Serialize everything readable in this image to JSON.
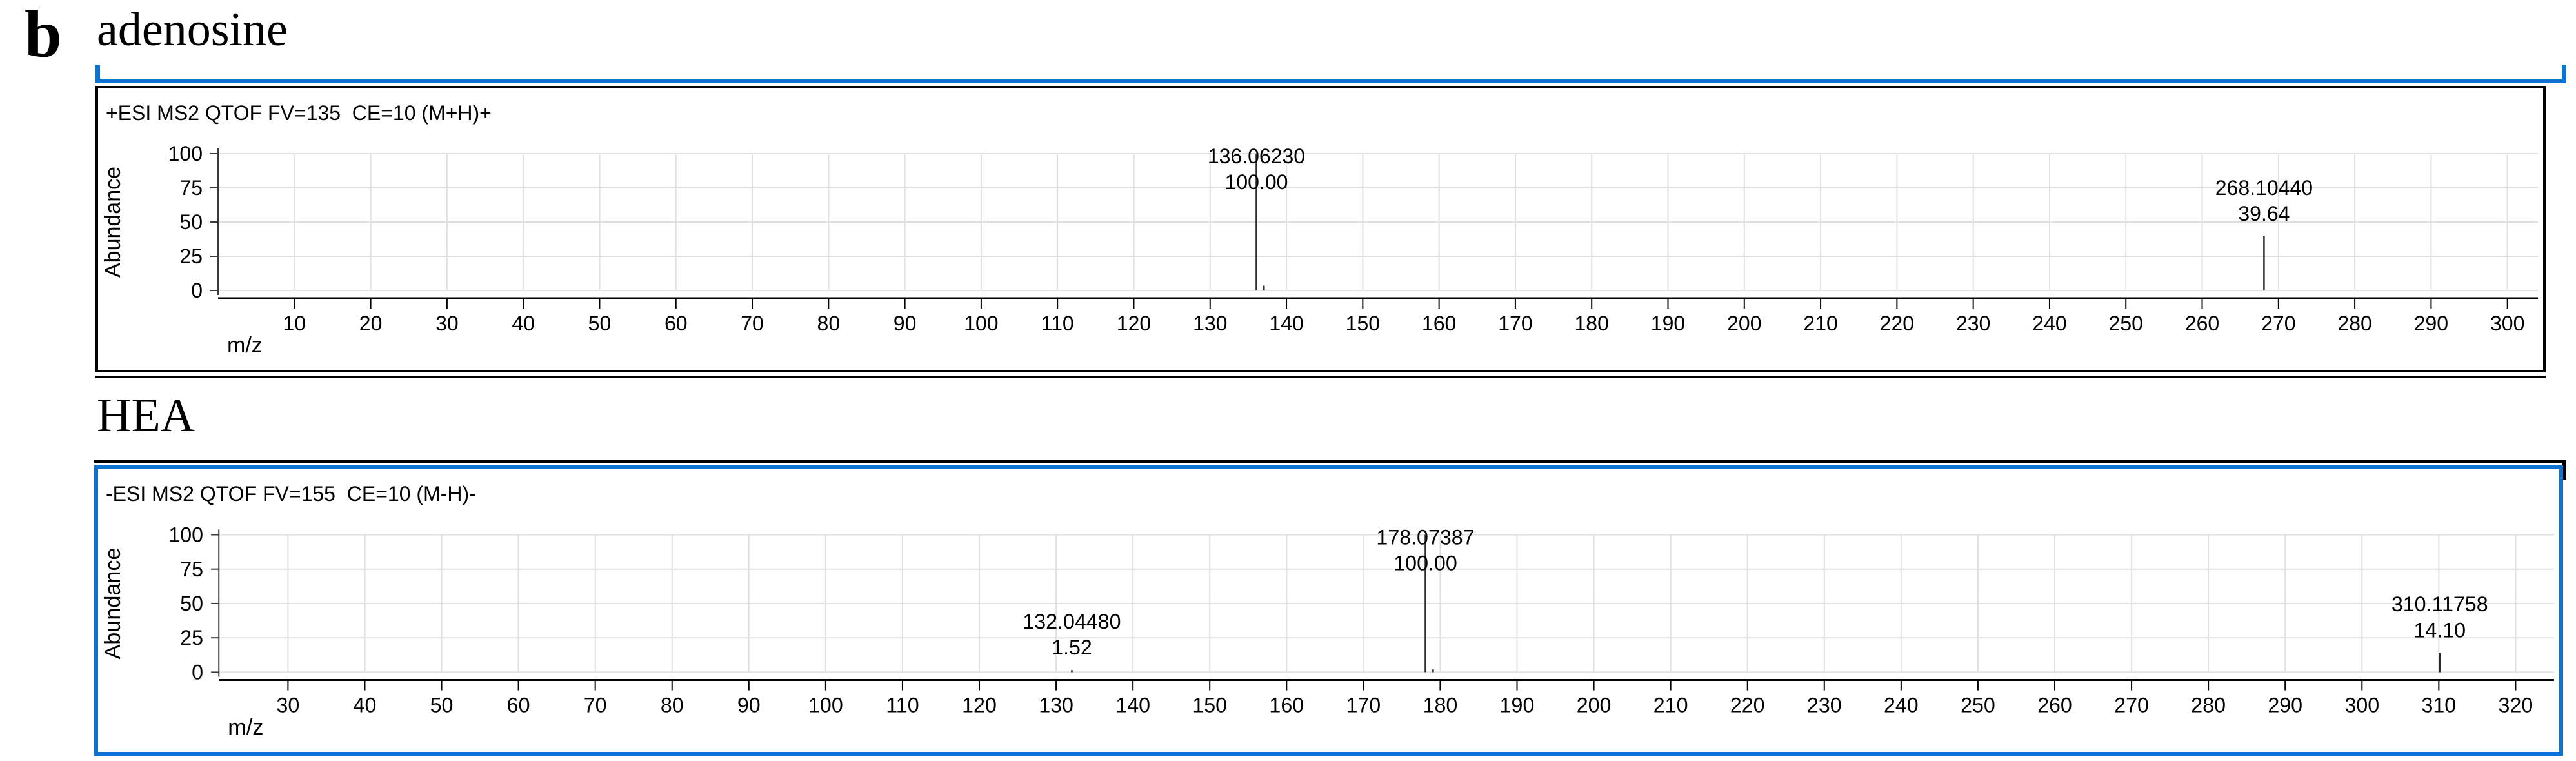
{
  "figure": {
    "panel_letter": "b",
    "colors": {
      "highlight_blue": "#0c73d0",
      "grid_gray": "#e0e0e0",
      "axis_black": "#000000",
      "peak_line": "#2b2b2b"
    }
  },
  "chart_data": [
    {
      "type": "line",
      "subtype": "mass-spectrum",
      "title": "adenosine",
      "header": "+ESI MS2 QTOF FV=135  CE=10 (M+H)+",
      "xlabel": "m/z",
      "ylabel": "Abundance",
      "xlim": [
        0,
        304
      ],
      "ylim": [
        0,
        100
      ],
      "grid": true,
      "legend": "none",
      "xticks": [
        10,
        20,
        30,
        40,
        50,
        60,
        70,
        80,
        90,
        100,
        110,
        120,
        130,
        140,
        150,
        160,
        170,
        180,
        190,
        200,
        210,
        220,
        230,
        240,
        250,
        260,
        270,
        280,
        290,
        300
      ],
      "yticks": [
        0,
        25,
        50,
        75,
        100
      ],
      "peaks": [
        {
          "mz": 136.0623,
          "abundance": 100.0,
          "mz_label": "136.06230",
          "abundance_label": "100.00"
        },
        {
          "mz": 268.1044,
          "abundance": 39.64,
          "mz_label": "268.10440",
          "abundance_label": "39.64"
        }
      ],
      "minor_peaks": [
        {
          "mz": 137.06,
          "abundance": 3.5
        }
      ]
    },
    {
      "type": "line",
      "subtype": "mass-spectrum",
      "title": "HEA",
      "header": "-ESI MS2 QTOF FV=155  CE=10 (M-H)-",
      "xlabel": "m/z",
      "ylabel": "Abundance",
      "xlim": [
        21,
        325
      ],
      "ylim": [
        0,
        100
      ],
      "grid": true,
      "legend": "none",
      "xticks": [
        30,
        40,
        50,
        60,
        70,
        80,
        90,
        100,
        110,
        120,
        130,
        140,
        150,
        160,
        170,
        180,
        190,
        200,
        210,
        220,
        230,
        240,
        250,
        260,
        270,
        280,
        290,
        300,
        310,
        320
      ],
      "yticks": [
        0,
        25,
        50,
        75,
        100
      ],
      "peaks": [
        {
          "mz": 132.0448,
          "abundance": 1.52,
          "mz_label": "132.04480",
          "abundance_label": "1.52"
        },
        {
          "mz": 178.0739,
          "abundance": 100.0,
          "mz_label": "178.07387",
          "abundance_label": "100.00"
        },
        {
          "mz": 310.1176,
          "abundance": 14.1,
          "mz_label": "310.11758",
          "abundance_label": "14.10"
        }
      ],
      "minor_peaks": [
        {
          "mz": 179.07,
          "abundance": 2.0
        }
      ]
    }
  ]
}
